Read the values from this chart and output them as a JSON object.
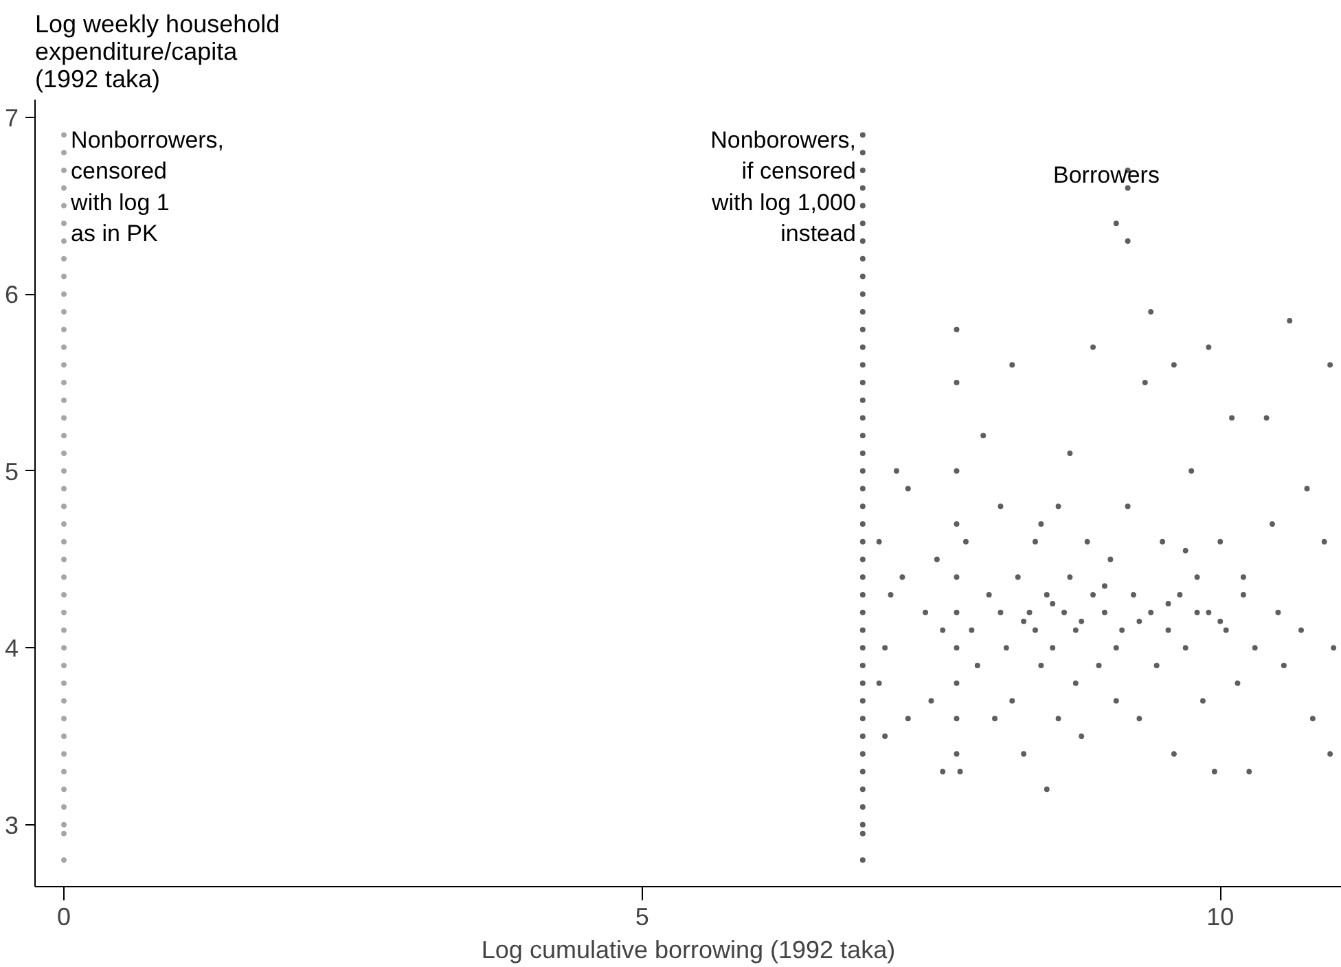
{
  "chart_data": {
    "type": "scatter",
    "ylabel": "Log weekly household\nexpenditure/capita\n(1992 taka)",
    "xlabel": "Log cumulative borrowing (1992 taka)",
    "xlim": [
      -0.25,
      11.05
    ],
    "ylim": [
      2.65,
      7.1
    ],
    "xticks": [
      0,
      5,
      10
    ],
    "yticks": [
      3,
      4,
      5,
      6,
      7
    ],
    "grid": false,
    "marker": "circle",
    "series": [
      {
        "color": "#a6a6a6",
        "x": [
          0,
          0,
          0,
          0,
          0,
          0,
          0,
          0,
          0,
          0,
          0,
          0,
          0,
          0,
          0,
          0,
          0,
          0,
          0,
          0,
          0,
          0,
          0,
          0,
          0,
          0,
          0,
          0,
          0,
          0,
          0,
          0,
          0,
          0,
          0,
          0,
          0,
          0,
          0,
          0,
          0,
          0
        ],
        "values": [
          2.8,
          2.95,
          3.0,
          3.1,
          3.2,
          3.3,
          3.4,
          3.5,
          3.6,
          3.7,
          3.8,
          3.9,
          4.0,
          4.1,
          4.2,
          4.3,
          4.4,
          4.5,
          4.6,
          4.7,
          4.8,
          4.9,
          5.0,
          5.1,
          5.2,
          5.3,
          5.4,
          5.5,
          5.6,
          5.7,
          5.8,
          5.9,
          6.0,
          6.1,
          6.2,
          6.3,
          6.4,
          6.5,
          6.6,
          6.7,
          6.8,
          6.9
        ]
      },
      {
        "color": "#5f5f5f",
        "x": [
          6.908,
          6.908,
          6.908,
          6.908,
          6.908,
          6.908,
          6.908,
          6.908,
          6.908,
          6.908,
          6.908,
          6.908,
          6.908,
          6.908,
          6.908,
          6.908,
          6.908,
          6.908,
          6.908,
          6.908,
          6.908,
          6.908,
          6.908,
          6.908,
          6.908,
          6.908,
          6.908,
          6.908,
          6.908,
          6.908,
          6.908,
          6.908,
          6.908,
          6.908,
          6.908,
          6.908,
          6.908,
          6.908,
          6.908,
          6.908,
          6.908,
          6.908
        ],
        "values": [
          2.8,
          2.95,
          3.0,
          3.1,
          3.2,
          3.3,
          3.4,
          3.5,
          3.6,
          3.7,
          3.8,
          3.9,
          4.0,
          4.1,
          4.2,
          4.3,
          4.4,
          4.5,
          4.6,
          4.7,
          4.8,
          4.9,
          5.0,
          5.1,
          5.2,
          5.3,
          5.4,
          5.5,
          5.6,
          5.7,
          5.8,
          5.9,
          6.0,
          6.1,
          6.2,
          6.3,
          6.4,
          6.5,
          6.6,
          6.7,
          6.8,
          6.9
        ]
      },
      {
        "color": "#5f5f5f",
        "x": [
          7.05,
          7.1,
          7.05,
          7.1,
          7.15,
          7.2,
          7.25,
          7.3,
          7.3,
          7.45,
          7.5,
          7.55,
          7.6,
          7.6,
          7.72,
          7.72,
          7.72,
          7.72,
          7.72,
          7.72,
          7.72,
          7.72,
          7.72,
          7.72,
          7.75,
          7.8,
          7.85,
          7.9,
          7.95,
          8.0,
          8.05,
          8.1,
          8.15,
          8.2,
          8.2,
          8.25,
          8.3,
          8.35,
          8.4,
          8.4,
          8.45,
          8.5,
          8.5,
          8.55,
          8.6,
          8.6,
          8.65,
          8.7,
          8.7,
          8.75,
          8.8,
          8.8,
          8.85,
          8.9,
          8.9,
          8.95,
          9.0,
          9.05,
          9.1,
          9.1,
          9.15,
          9.2,
          9.2,
          9.2,
          9.2,
          9.25,
          9.3,
          9.35,
          9.4,
          9.4,
          9.45,
          9.5,
          9.55,
          9.6,
          9.6,
          9.65,
          9.7,
          9.75,
          9.8,
          9.85,
          9.9,
          9.9,
          9.95,
          10.0,
          10.05,
          10.1,
          10.15,
          10.2,
          10.25,
          10.3,
          10.4,
          10.45,
          10.5,
          10.55,
          10.6,
          10.7,
          10.75,
          10.8,
          10.9,
          10.95,
          10.95,
          10.98,
          8.1,
          8.3,
          8.55,
          8.75,
          9.0,
          9.3,
          9.55,
          9.8,
          10.0,
          10.2,
          8.45,
          9.1,
          9.7
        ],
        "values": [
          4.6,
          4.0,
          3.8,
          3.5,
          4.3,
          5.0,
          4.4,
          3.6,
          4.9,
          4.2,
          3.7,
          4.5,
          3.3,
          4.1,
          5.8,
          5.5,
          5.0,
          4.7,
          4.4,
          4.2,
          4.0,
          3.8,
          3.6,
          3.4,
          3.3,
          4.6,
          4.1,
          3.9,
          5.2,
          4.3,
          3.6,
          4.8,
          4.0,
          3.7,
          5.6,
          4.4,
          3.4,
          4.2,
          4.1,
          4.6,
          3.9,
          4.3,
          3.2,
          4.0,
          4.8,
          3.6,
          4.2,
          5.1,
          4.4,
          3.8,
          4.15,
          3.5,
          4.6,
          4.3,
          5.7,
          3.9,
          4.2,
          4.5,
          6.4,
          3.7,
          4.1,
          6.7,
          6.6,
          6.3,
          4.8,
          4.3,
          3.6,
          5.5,
          4.2,
          5.9,
          3.9,
          4.6,
          4.1,
          5.6,
          3.4,
          4.3,
          4.0,
          5.0,
          4.4,
          3.7,
          5.7,
          4.2,
          3.3,
          4.6,
          4.1,
          5.3,
          3.8,
          4.4,
          3.3,
          4.0,
          5.3,
          4.7,
          4.2,
          3.9,
          5.85,
          4.1,
          4.9,
          3.6,
          4.6,
          3.4,
          5.6,
          4.0,
          4.2,
          4.15,
          4.25,
          4.1,
          4.35,
          4.15,
          4.25,
          4.2,
          4.15,
          4.3,
          4.7,
          4.0,
          4.55
        ]
      }
    ],
    "annotations": [
      "Nonborrowers,\ncensored\nwith log 1\nas in PK",
      "Nonborowers,\nif censored\nwith log 1,000\ninstead",
      "Borrowers"
    ]
  }
}
